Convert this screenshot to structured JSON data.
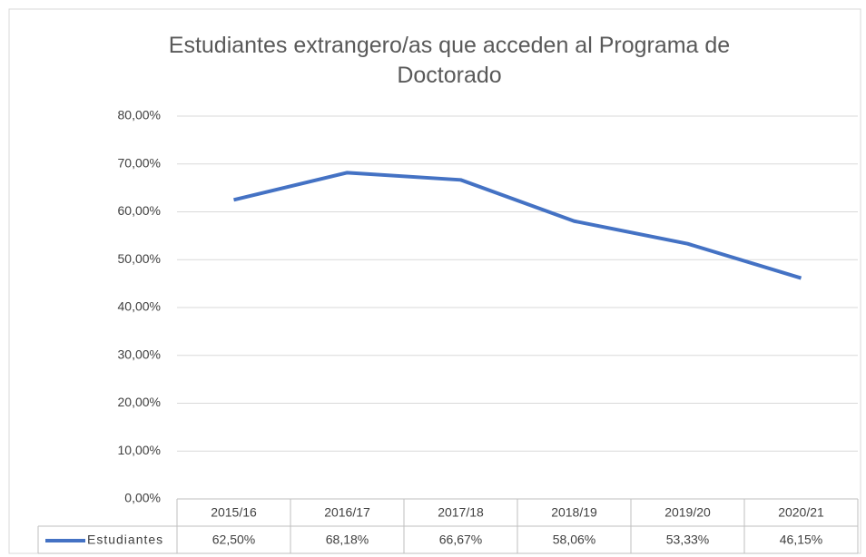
{
  "chart_data": {
    "type": "line",
    "title": "Estudiantes extrangero/as que acceden al Programa de Doctorado",
    "categories": [
      "2015/16",
      "2016/17",
      "2017/18",
      "2018/19",
      "2019/20",
      "2020/21"
    ],
    "series": [
      {
        "name": "Estudiantes",
        "color": "#4472c4",
        "values": [
          62.5,
          68.18,
          66.67,
          58.06,
          53.33,
          46.15
        ],
        "value_labels": [
          "62,50%",
          "68,18%",
          "66,67%",
          "58,06%",
          "53,33%",
          "46,15%"
        ]
      }
    ],
    "ylim": [
      0,
      80
    ],
    "yticks": [
      {
        "value": 0,
        "label": "0,00%"
      },
      {
        "value": 10,
        "label": "10,00%"
      },
      {
        "value": 20,
        "label": "20,00%"
      },
      {
        "value": 30,
        "label": "30,00%"
      },
      {
        "value": 40,
        "label": "40,00%"
      },
      {
        "value": 50,
        "label": "50,00%"
      },
      {
        "value": 60,
        "label": "60,00%"
      },
      {
        "value": 70,
        "label": "70,00%"
      },
      {
        "value": 80,
        "label": "80,00%"
      }
    ],
    "grid": true,
    "data_table": true
  }
}
